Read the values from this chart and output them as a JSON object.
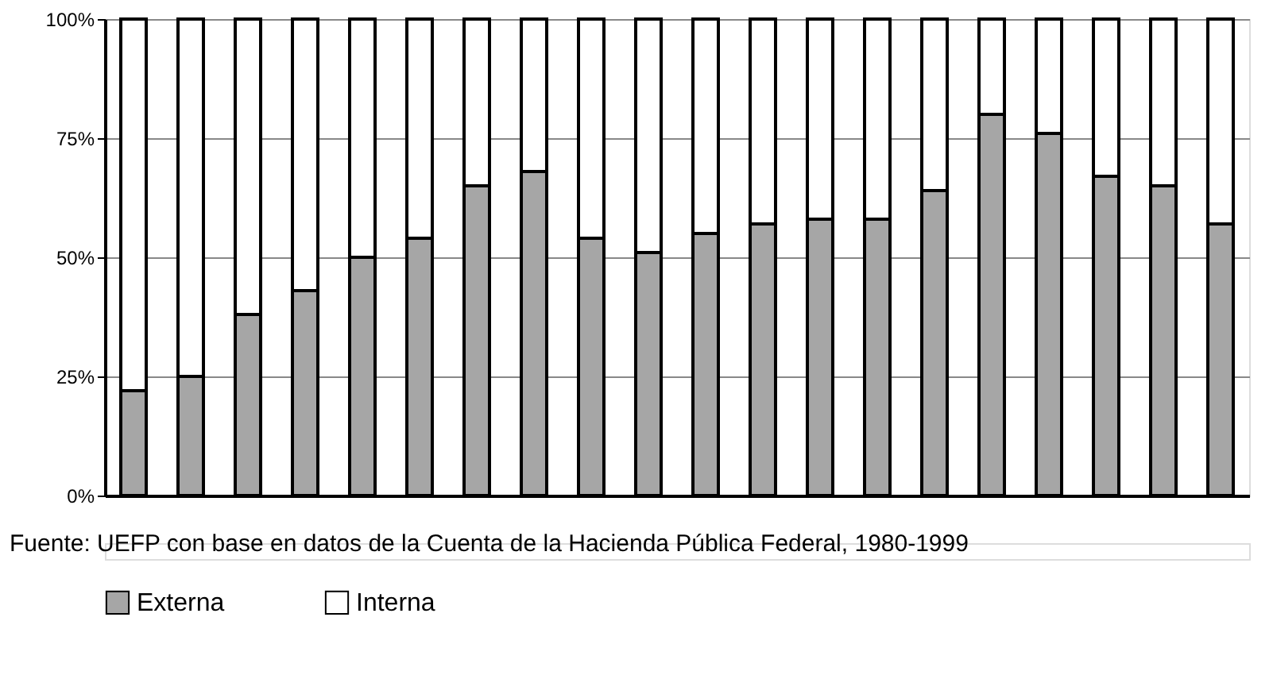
{
  "chart_data": {
    "type": "bar",
    "stacked": true,
    "categories": [
      null,
      null,
      null,
      null,
      null,
      null,
      null,
      null,
      null,
      null,
      null,
      null,
      null,
      null,
      null,
      null,
      null,
      null,
      null,
      null
    ],
    "series": [
      {
        "name": "Externa",
        "color": "#a6a6a6",
        "values": [
          22,
          25,
          38,
          43,
          50,
          54,
          65,
          68,
          54,
          51,
          55,
          57,
          58,
          58,
          64,
          80,
          76,
          67,
          65,
          57
        ]
      },
      {
        "name": "Interna",
        "color": "#ffffff",
        "values": [
          78,
          75,
          62,
          57,
          50,
          46,
          35,
          32,
          46,
          49,
          45,
          43,
          42,
          42,
          36,
          20,
          24,
          33,
          35,
          43
        ]
      }
    ],
    "ylim": [
      0,
      100
    ],
    "yticks": [
      {
        "value": 0,
        "label": "0%"
      },
      {
        "value": 25,
        "label": "25%"
      },
      {
        "value": 50,
        "label": "50%"
      },
      {
        "value": 75,
        "label": "75%"
      },
      {
        "value": 100,
        "label": "100%"
      }
    ],
    "grid": "y",
    "legend": "bottom",
    "annotations": [
      "Fuente: UEFP con base en datos de la Cuenta de la Hacienda Pública Federal, 1980-1999"
    ]
  }
}
